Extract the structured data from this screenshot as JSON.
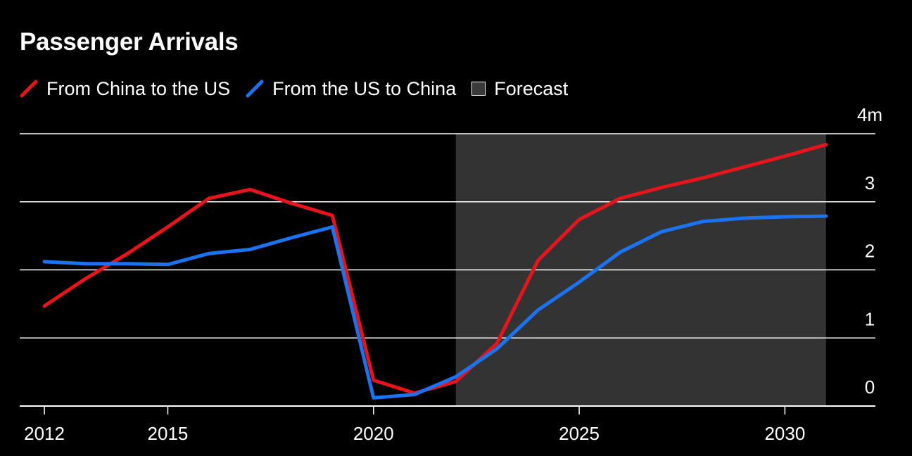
{
  "chart_data": {
    "type": "line",
    "title": "Passenger Arrivals",
    "xlabel": "",
    "ylabel": "",
    "xlim": [
      2011.4,
      2032.2
    ],
    "ylim": [
      0,
      4
    ],
    "x_ticks": [
      2012,
      2015,
      2020,
      2025,
      2030
    ],
    "x_tick_labels": [
      "2012",
      "2015",
      "2020",
      "2025",
      "2030"
    ],
    "y_ticks": [
      0,
      1,
      2,
      3,
      4
    ],
    "y_tick_labels": [
      "0",
      "1",
      "2",
      "3",
      "4m"
    ],
    "forecast_range": [
      2022,
      2031
    ],
    "legend_placement": "top-left",
    "series": [
      {
        "name": "From China to the US",
        "color": "#e8141c",
        "x": [
          2012,
          2013,
          2014,
          2015,
          2016,
          2017,
          2018,
          2019,
          2020,
          2021,
          2022,
          2023,
          2024,
          2025,
          2026,
          2027,
          2028,
          2029,
          2030,
          2031
        ],
        "values": [
          1.47,
          1.87,
          2.23,
          2.63,
          3.05,
          3.18,
          2.98,
          2.8,
          0.38,
          0.19,
          0.36,
          0.92,
          2.14,
          2.74,
          3.05,
          3.21,
          3.35,
          3.51,
          3.67,
          3.84
        ]
      },
      {
        "name": "From the US to China",
        "color": "#1b73f0",
        "x": [
          2012,
          2013,
          2014,
          2015,
          2016,
          2017,
          2018,
          2019,
          2020,
          2021,
          2022,
          2023,
          2024,
          2025,
          2026,
          2027,
          2028,
          2029,
          2030,
          2031
        ],
        "values": [
          2.12,
          2.09,
          2.09,
          2.08,
          2.24,
          2.3,
          2.47,
          2.63,
          0.12,
          0.17,
          0.43,
          0.84,
          1.41,
          1.82,
          2.26,
          2.56,
          2.71,
          2.76,
          2.78,
          2.79
        ]
      }
    ]
  },
  "legend": {
    "items": [
      "From China to the US",
      "From the US to China",
      "Forecast"
    ]
  },
  "colors": {
    "background": "#000000",
    "forecast_band": "#333333",
    "gridline": "#ffffff",
    "text": "#ffffff"
  }
}
